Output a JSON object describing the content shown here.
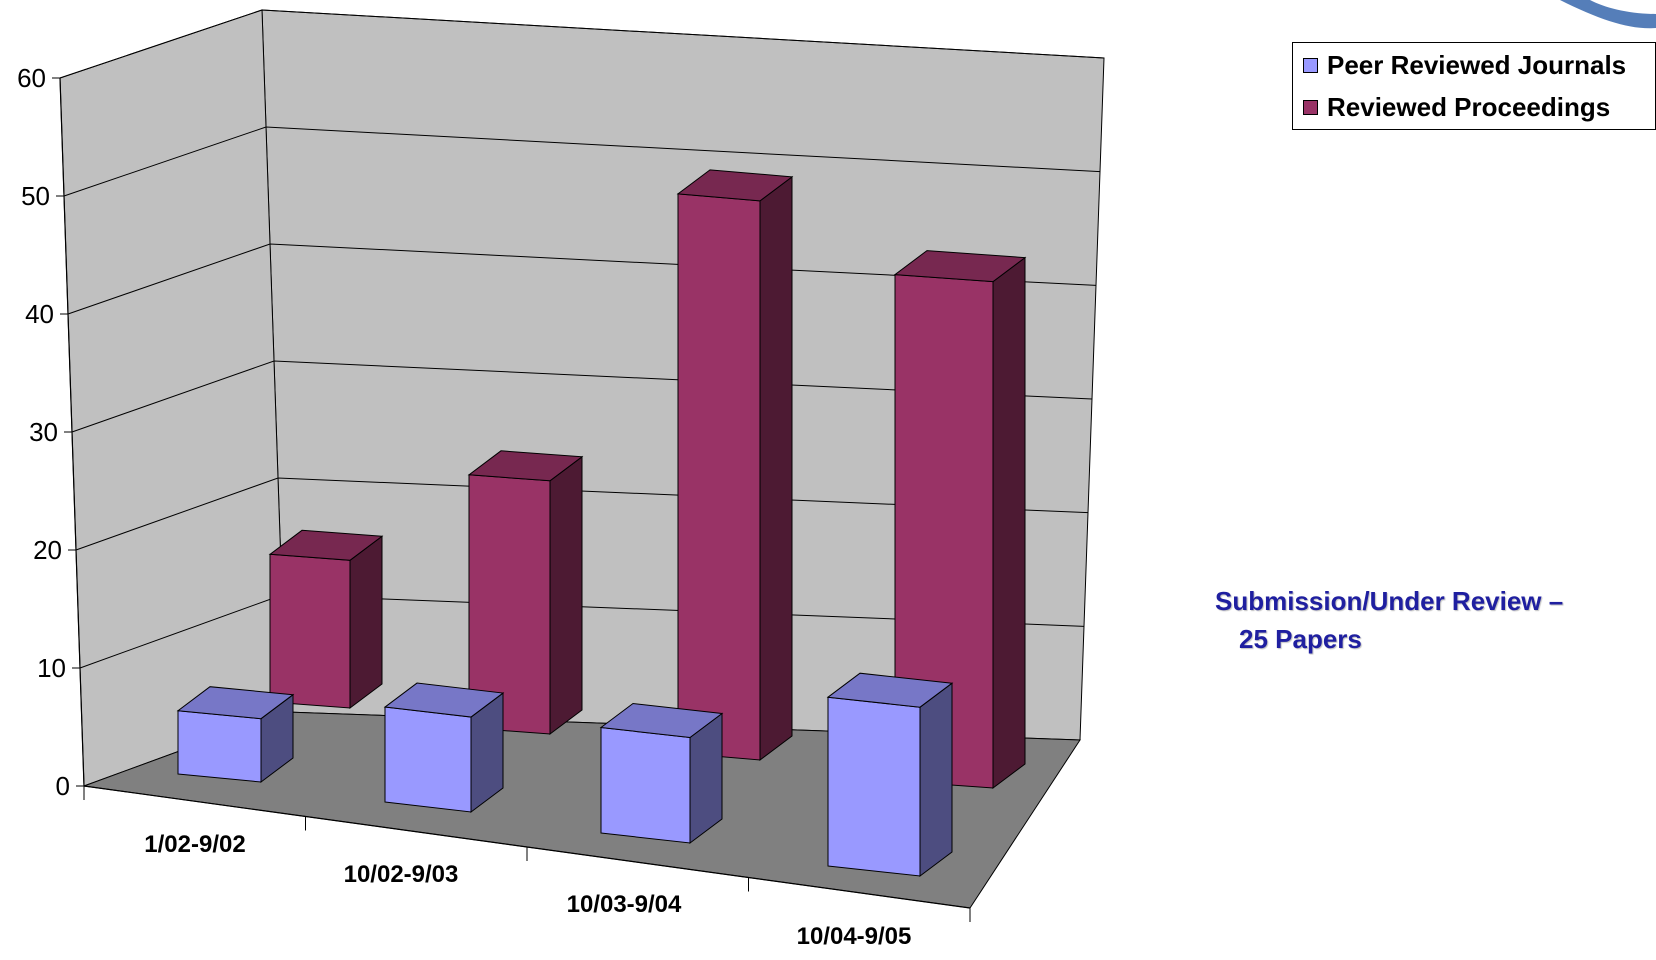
{
  "chart_data": {
    "type": "bar",
    "style": "3d-clustered-column",
    "categories": [
      "1/02-9/02",
      "10/02-9/03",
      "10/03-9/04",
      "10/04-9/05"
    ],
    "series": [
      {
        "name": "Peer Reviewed Journals",
        "values": [
          6,
          9,
          10,
          16
        ],
        "color": "#9999ff"
      },
      {
        "name": "Reviewed Proceedings",
        "values": [
          14,
          24,
          53,
          48
        ],
        "color": "#993366"
      }
    ],
    "yticks": [
      0,
      10,
      20,
      30,
      40,
      50,
      60
    ],
    "ylim": [
      0,
      60
    ],
    "grid": true,
    "legend_position": "top-right",
    "title": "",
    "xlabel": "",
    "ylabel": "",
    "wall_color": "#c0c0c0",
    "floor_color": "#808080"
  },
  "note": {
    "line1": "Submission/Under Review –",
    "line2": "25 Papers",
    "color": "#1f1fa0"
  }
}
